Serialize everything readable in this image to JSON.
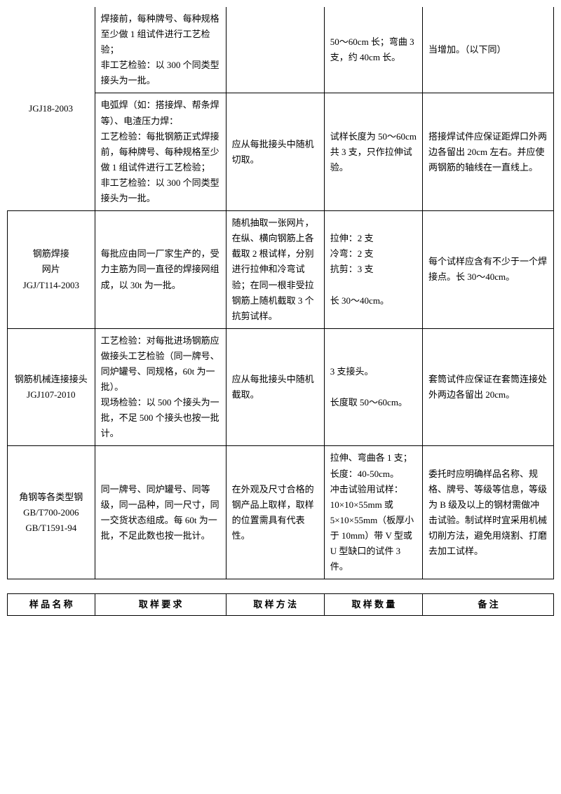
{
  "mainTable": {
    "rows": [
      {
        "c1": "",
        "c2": "焊接前，每种牌号、每种规格至少做 1 组试件进行工艺检验；\n非工艺检验：以 300 个同类型接头为一批。",
        "c3": "",
        "c4": "50～60cm 长；弯曲 3 支，约 40cm 长。",
        "c5": "当增加。（以下同）"
      },
      {
        "c1": "JGJ18-2003",
        "c2": "电弧焊（如：搭接焊、帮条焊等）、电渣压力焊：\n工艺检验：每批钢筋正式焊接前，每种牌号、每种规格至少做 1 组试件进行工艺检验；\n非工艺检验：以 300 个同类型接头为一批。",
        "c3": "应从每批接头中随机切取。",
        "c4": "试样长度为 50～60cm 共 3 支，只作拉伸试验。",
        "c5": "搭接焊试件应保证距焊口外两边各留出 20cm 左右。并应使两钢筋的轴线在一直线上。"
      },
      {
        "c1": "钢筋焊接\n网片\nJGJ/T114-2003",
        "c2": "每批应由同一厂家生产的，受力主筋为同一直径的焊接网组成，以 30t 为一批。",
        "c3": "随机抽取一张网片，在纵、横向钢筋上各截取 2 根试样，分别进行拉伸和冷弯试验；在同一根非受拉钢筋上随机截取 3 个抗剪试样。",
        "c4": "拉伸：2 支\n冷弯：2 支\n抗剪：3 支\n\n长 30～40cm。",
        "c5": "每个试样应含有不少于一个焊接点。长 30～40cm。"
      },
      {
        "c1": "钢筋机械连接接头\nJGJ107-2010",
        "c2": "工艺检验：对每批进场钢筋应做接头工艺检验（同一牌号、同炉罐号、同规格，60t 为一批）。\n现场检验：以 500 个接头为一批，不足 500 个接头也按一批计。",
        "c3": "应从每批接头中随机截取。",
        "c4": "3 支接头。\n\n长度取 50～60cm。",
        "c5": "套筒试件应保证在套筒连接处外两边各留出 20cm。"
      },
      {
        "c1": "角钢等各类型钢\nGB/T700-2006\nGB/T1591-94",
        "c2": "同一牌号、同炉罐号、同等级，同一品种，同一尺寸，同一交货状态组成。每 60t 为一批，不足此数也按一批计。",
        "c3": "在外观及尺寸合格的钢产品上取样，取样的位置需具有代表性。",
        "c4": "拉伸、弯曲各 1 支；\n长度：40-50cm。\n冲击试验用试样：\n10×10×55mm 或 5×10×55mm（板厚小于 10mm）带 V 型或 U 型缺口的试件 3 件。",
        "c5": "委托时应明确样品名称、规格、牌号、等级等信息，等级为 B 级及以上的钢材需做冲击试验。制试样时宜采用机械切削方法，避免用烧割、打磨去加工试样。"
      }
    ]
  },
  "headerTable": {
    "headers": [
      "样 品 名 称",
      "取 样 要 求",
      "取 样 方 法",
      "取 样 数 量",
      "备 注"
    ]
  }
}
